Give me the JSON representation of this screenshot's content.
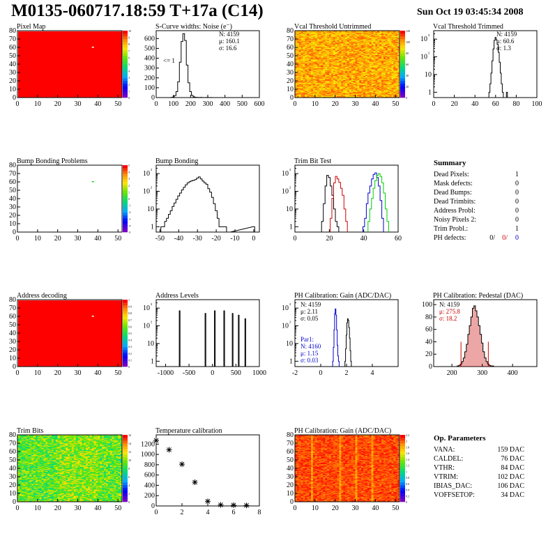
{
  "header": {
    "title": "M0135-060717.18:59 T+17a (C14)",
    "datetime": "Sun Oct 19 03:45:34 2008"
  },
  "colors": {
    "frame": "#000000",
    "map_red": "#ff0000",
    "hist_line": "#000000",
    "red_line": "#cc0000",
    "blue_line": "#0000cc",
    "green_line": "#00cc00"
  },
  "chart_data": [
    {
      "id": "pixel-map",
      "type": "heatmap",
      "title": "Pixel Map",
      "x_ticks": [
        "0",
        "10",
        "20",
        "30",
        "40",
        "50"
      ],
      "y_ticks": [
        "0",
        "10",
        "20",
        "30",
        "40",
        "50",
        "60",
        "70",
        "80"
      ],
      "xlim": [
        0,
        52
      ],
      "ylim": [
        0,
        80
      ],
      "z_ticks": [
        "0",
        "1",
        "2",
        "3",
        "4",
        "5",
        "6",
        "7",
        "8",
        "9",
        "10"
      ],
      "fill": "uniform-max",
      "special_pixels": [
        {
          "x": 37,
          "y": 60
        }
      ]
    },
    {
      "id": "scurve-noise",
      "type": "histogram",
      "title": "S-Curve widths: Noise (e⁻)",
      "x_ticks": [
        "0",
        "100",
        "200",
        "300",
        "400",
        "500",
        "600"
      ],
      "y_ticks": [
        "0",
        "100",
        "200",
        "300",
        "400",
        "500",
        "600"
      ],
      "xlim": [
        0,
        600
      ],
      "ylim": [
        0,
        680
      ],
      "stats": [
        "N: 4159",
        "μ: 160.1",
        "σ: 16.6"
      ],
      "annotation": "<= 1",
      "x": [
        90,
        100,
        110,
        120,
        130,
        140,
        150,
        160,
        170,
        180,
        190,
        200,
        210,
        220,
        230,
        240,
        250,
        260,
        270,
        280,
        290,
        300,
        310,
        320
      ],
      "values": [
        2,
        5,
        20,
        60,
        160,
        360,
        570,
        650,
        580,
        330,
        150,
        60,
        22,
        8,
        3,
        2,
        1,
        2,
        1,
        0,
        1,
        2,
        0,
        1
      ]
    },
    {
      "id": "vcal-untrimmed",
      "type": "heatmap",
      "title": "Vcal Threshold Untrimmed",
      "x_ticks": [
        "0",
        "10",
        "20",
        "30",
        "40",
        "50"
      ],
      "y_ticks": [
        "0",
        "10",
        "20",
        "30",
        "40",
        "50",
        "60",
        "70",
        "80"
      ],
      "xlim": [
        0,
        52
      ],
      "ylim": [
        0,
        80
      ],
      "z_ticks": [
        "0",
        "20",
        "40",
        "60",
        "80",
        "100",
        "120"
      ],
      "fill": "noisy-orange"
    },
    {
      "id": "vcal-trimmed",
      "type": "histogram",
      "log_y": true,
      "title": "Vcal Threshold Trimmed",
      "x_ticks": [
        "0",
        "20",
        "40",
        "60",
        "80",
        "100"
      ],
      "y_ticks": [
        "1",
        "10",
        "10²",
        "10³"
      ],
      "xlim": [
        0,
        100
      ],
      "ylim_log": [
        0.5,
        3000
      ],
      "stats": [
        "N: 4159",
        "μ: 60.6",
        "σ: 1.3"
      ],
      "x": [
        54,
        55,
        56,
        57,
        58,
        59,
        60,
        61,
        62,
        63,
        64,
        65,
        66,
        67,
        68,
        69,
        70,
        71,
        72
      ],
      "values": [
        1,
        3,
        12,
        60,
        280,
        850,
        1250,
        900,
        500,
        180,
        50,
        12,
        3,
        1,
        0,
        0,
        0,
        1,
        0
      ]
    },
    {
      "id": "bump-problems",
      "type": "heatmap",
      "title": "Bump Bonding Problems",
      "x_ticks": [
        "0",
        "10",
        "20",
        "30",
        "40",
        "50"
      ],
      "y_ticks": [
        "0",
        "10",
        "20",
        "30",
        "40",
        "50",
        "60",
        "70",
        "80"
      ],
      "xlim": [
        0,
        52
      ],
      "ylim": [
        0,
        80
      ],
      "z_ticks": [
        "-5",
        "-4",
        "-3",
        "-2",
        "-1",
        "0",
        "1",
        "2",
        "3",
        "4",
        "5"
      ],
      "fill": "empty",
      "special_pixels": [
        {
          "x": 37,
          "y": 60
        }
      ]
    },
    {
      "id": "bump-bonding",
      "type": "histogram",
      "log_y": true,
      "title": "Bump Bonding",
      "x_ticks": [
        "-50",
        "-40",
        "-30",
        "-20",
        "-10",
        "0"
      ],
      "y_ticks": [
        "1",
        "10",
        "10²",
        "10³"
      ],
      "xlim": [
        -52,
        3
      ],
      "ylim_log": [
        0.5,
        3000
      ],
      "x": [
        -49,
        -48,
        -47,
        -46,
        -45,
        -44,
        -43,
        -42,
        -41,
        -40,
        -39,
        -38,
        -37,
        -36,
        -35,
        -34,
        -33,
        -32,
        -31,
        -30,
        -29,
        -28,
        -27,
        -26,
        -25,
        -24,
        -23,
        -22,
        -21,
        -20,
        -19,
        -18,
        -17,
        -16,
        -15,
        -14,
        -13,
        0
      ],
      "values": [
        1,
        1,
        2,
        3,
        5,
        8,
        14,
        22,
        35,
        55,
        80,
        120,
        170,
        230,
        300,
        350,
        390,
        420,
        460,
        560,
        650,
        500,
        380,
        300,
        250,
        140,
        90,
        45,
        20,
        8,
        3,
        1,
        1,
        1,
        1,
        0,
        0,
        1
      ]
    },
    {
      "id": "trim-bit-test",
      "type": "histogram",
      "log_y": true,
      "title": "Trim Bit Test",
      "x_ticks": [
        "0",
        "20",
        "40",
        "60"
      ],
      "y_ticks": [
        "1",
        "10",
        "10²",
        "10³"
      ],
      "xlim": [
        0,
        60
      ],
      "ylim_log": [
        0.5,
        3000
      ],
      "series": [
        {
          "color": "black",
          "x": [
            16,
            17,
            18,
            19,
            20,
            21,
            22,
            23,
            24,
            25
          ],
          "values": [
            2,
            20,
            200,
            800,
            600,
            200,
            60,
            10,
            2,
            1
          ]
        },
        {
          "color": "red",
          "x": [
            21,
            22,
            23,
            24,
            25,
            26,
            27,
            28,
            29,
            30
          ],
          "values": [
            3,
            40,
            300,
            700,
            500,
            320,
            150,
            60,
            10,
            2
          ]
        },
        {
          "color": "blue",
          "x": [
            40,
            41,
            42,
            43,
            44,
            45,
            46,
            47,
            48,
            49,
            50,
            51
          ],
          "values": [
            1,
            3,
            20,
            80,
            200,
            500,
            900,
            1100,
            600,
            200,
            30,
            3
          ]
        },
        {
          "color": "green",
          "x": [
            43,
            44,
            45,
            46,
            47,
            48,
            49,
            50,
            51,
            52,
            53,
            54
          ],
          "values": [
            2,
            10,
            40,
            150,
            400,
            800,
            1000,
            700,
            300,
            80,
            10,
            2
          ]
        }
      ]
    },
    {
      "type": "table",
      "title": "Summary",
      "rows": [
        {
          "label": "Dead Pixels:",
          "value": "1"
        },
        {
          "label": "Mask defects:",
          "value": "0"
        },
        {
          "label": "Dead Bumps:",
          "value": "0"
        },
        {
          "label": "Dead Trimbits:",
          "value": "0"
        },
        {
          "label": "Address Probl:",
          "value": "0"
        },
        {
          "label": "Noisy Pixels 2:",
          "value": "0"
        },
        {
          "label": "Trim Probl.:",
          "value": "1"
        }
      ],
      "ph_row": {
        "label": "PH defects:",
        "v1": "0/",
        "v2": "0/",
        "v3": "0"
      }
    },
    {
      "id": "address-decoding",
      "type": "heatmap",
      "title": "Address decoding",
      "x_ticks": [
        "0",
        "10",
        "20",
        "30",
        "40",
        "50"
      ],
      "y_ticks": [
        "0",
        "10",
        "20",
        "30",
        "40",
        "50",
        "60",
        "70",
        "80"
      ],
      "xlim": [
        0,
        52
      ],
      "ylim": [
        0,
        80
      ],
      "z_ticks": [
        "0",
        "0.1",
        "0.2",
        "0.3",
        "0.4",
        "0.5",
        "0.6",
        "0.7",
        "0.8",
        "0.9",
        "1"
      ],
      "fill": "uniform-max",
      "special_pixels": [
        {
          "x": 37,
          "y": 60
        }
      ]
    },
    {
      "id": "address-levels",
      "type": "histogram",
      "log_y": true,
      "title": "Address Levels",
      "x_ticks": [
        "-1000",
        "-500",
        "0",
        "500",
        "1000"
      ],
      "y_ticks": [
        "1",
        "10",
        "10²",
        "10³"
      ],
      "xlim": [
        -1200,
        1000
      ],
      "ylim_log": [
        0.5,
        3000
      ],
      "peaks_x": [
        -700,
        -150,
        50,
        250,
        430,
        560,
        700
      ],
      "peaks_y": [
        700,
        500,
        700,
        700,
        500,
        400,
        250
      ]
    },
    {
      "id": "ph-gain-hist",
      "type": "histogram",
      "log_y": true,
      "title": "PH Calibration: Gain (ADC/DAC)",
      "x_ticks": [
        "-2",
        "0",
        "2",
        "4"
      ],
      "y_ticks": [
        "1",
        "10",
        "10²",
        "10³"
      ],
      "xlim": [
        -2,
        6
      ],
      "ylim_log": [
        0.5,
        3000
      ],
      "stats": [
        "N: 4159",
        "μ: 2.11",
        "σ: 0.05"
      ],
      "stats2": [
        "Par1:",
        "N: 4160",
        "μ: 1.15",
        "σ: 0.03"
      ],
      "series": [
        {
          "color": "black",
          "x": [
            1.9,
            1.95,
            2.0,
            2.05,
            2.1,
            2.15,
            2.2,
            2.25,
            2.3,
            2.35
          ],
          "values": [
            1,
            5,
            30,
            150,
            250,
            200,
            80,
            20,
            4,
            1
          ]
        },
        {
          "color": "blue",
          "x": [
            0.95,
            1.0,
            1.05,
            1.1,
            1.15,
            1.2,
            1.25,
            1.3,
            1.35,
            1.4
          ],
          "values": [
            1,
            6,
            60,
            500,
            900,
            400,
            60,
            8,
            2,
            1
          ]
        }
      ]
    },
    {
      "id": "ph-pedestal",
      "type": "histogram",
      "title": "PH Calibration: Pedestal (DAC)",
      "x_ticks": [
        "200",
        "300",
        "400"
      ],
      "y_ticks": [
        "0",
        "20",
        "40",
        "60",
        "80",
        "100"
      ],
      "xlim": [
        140,
        480
      ],
      "ylim": [
        0,
        108
      ],
      "stats": [
        "N: 4159"
      ],
      "stats_red": [
        "μ: 275.8",
        "σ: 18.2"
      ],
      "cut_lines_x": [
        230,
        320
      ],
      "x": [
        220,
        225,
        230,
        235,
        240,
        245,
        250,
        255,
        260,
        265,
        270,
        275,
        280,
        285,
        290,
        295,
        300,
        305,
        310,
        315,
        320,
        325,
        330,
        335
      ],
      "values": [
        1,
        2,
        4,
        8,
        14,
        24,
        36,
        52,
        66,
        80,
        94,
        98,
        90,
        80,
        66,
        52,
        38,
        24,
        14,
        8,
        4,
        2,
        1,
        1
      ]
    },
    {
      "id": "trim-bits",
      "type": "heatmap",
      "title": "Trim Bits",
      "x_ticks": [
        "0",
        "10",
        "20",
        "30",
        "40",
        "50"
      ],
      "y_ticks": [
        "0",
        "10",
        "20",
        "30",
        "40",
        "50",
        "60",
        "70",
        "80"
      ],
      "xlim": [
        0,
        52
      ],
      "ylim": [
        0,
        80
      ],
      "z_ticks": [
        "0",
        "2",
        "4",
        "6",
        "8",
        "10",
        "12",
        "14",
        "16"
      ],
      "fill": "noisy-green"
    },
    {
      "id": "temp-calibration",
      "type": "scatter",
      "title": "Temperature calibration",
      "x_ticks": [
        "0",
        "2",
        "4",
        "6",
        "8"
      ],
      "y_ticks": [
        "0",
        "200",
        "400",
        "600",
        "800",
        "1000",
        "1200"
      ],
      "xlim": [
        0,
        8
      ],
      "ylim": [
        0,
        1380
      ],
      "x": [
        0,
        1,
        2,
        3,
        4,
        5,
        6,
        7
      ],
      "values": [
        1270,
        1090,
        810,
        460,
        90,
        20,
        15,
        10
      ]
    },
    {
      "id": "ph-gain-map",
      "type": "heatmap",
      "title": "PH Calibration: Gain (ADC/DAC)",
      "x_ticks": [
        "0",
        "10",
        "20",
        "30",
        "40",
        "50"
      ],
      "y_ticks": [
        "0",
        "10",
        "20",
        "30",
        "40",
        "50",
        "60",
        "70",
        "80"
      ],
      "xlim": [
        0,
        52
      ],
      "ylim": [
        0,
        80
      ],
      "z_ticks": [
        "0",
        "0.2",
        "0.4",
        "0.6",
        "0.8",
        "1",
        "1.2",
        "1.4",
        "1.6",
        "1.8",
        "2",
        "2.2"
      ],
      "fill": "noisy-red"
    },
    {
      "type": "table",
      "title": "Op. Parameters",
      "rows": [
        {
          "label": "VANA:",
          "value": "159 DAC"
        },
        {
          "label": "CALDEL:",
          "value": "76 DAC"
        },
        {
          "label": "VTHR:",
          "value": "84 DAC"
        },
        {
          "label": "VTRIM:",
          "value": "102 DAC"
        },
        {
          "label": "IBIAS_DAC:",
          "value": "106 DAC"
        },
        {
          "label": "VOFFSETOP:",
          "value": "34 DAC"
        }
      ]
    }
  ]
}
